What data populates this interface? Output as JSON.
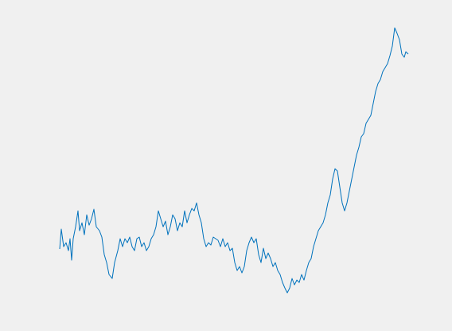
{
  "chart_data": {
    "type": "line",
    "color": "#0072bd",
    "x": [
      75,
      77,
      80,
      83,
      86,
      88,
      90,
      92,
      95,
      98,
      100,
      103,
      106,
      109,
      112,
      115,
      118,
      121,
      125,
      128,
      131,
      134,
      137,
      141,
      144,
      148,
      151,
      154,
      157,
      160,
      163,
      166,
      169,
      172,
      175,
      178,
      181,
      184,
      187,
      190,
      193,
      196,
      199,
      202,
      205,
      208,
      211,
      214,
      217,
      220,
      223,
      226,
      229,
      232,
      235,
      238,
      241,
      244,
      247,
      250,
      253,
      256,
      259,
      262,
      265,
      268,
      271,
      274,
      277,
      280,
      283,
      286,
      289,
      292,
      295,
      298,
      301,
      304,
      307,
      310,
      313,
      316,
      319,
      322,
      325,
      328,
      331,
      334,
      337,
      340,
      343,
      346,
      349,
      352,
      355,
      358,
      361,
      364,
      367,
      370,
      373,
      376,
      379,
      382,
      385,
      388,
      391,
      394,
      397,
      400,
      403,
      406,
      409,
      412,
      415,
      418,
      421,
      424,
      427,
      430,
      433,
      436,
      439,
      442,
      445,
      448,
      451,
      454,
      457,
      460,
      463,
      466,
      469,
      472,
      475,
      478,
      481,
      484,
      487,
      490,
      493,
      496,
      499,
      502,
      505,
      508,
      510,
      513
    ],
    "values": [
      103,
      128,
      106,
      111,
      101,
      116,
      89,
      116,
      131,
      151,
      126,
      136,
      121,
      146,
      133,
      141,
      153,
      131,
      126,
      118,
      96,
      86,
      71,
      66,
      86,
      101,
      116,
      106,
      116,
      111,
      118,
      106,
      101,
      116,
      118,
      106,
      111,
      101,
      106,
      116,
      121,
      131,
      151,
      141,
      131,
      138,
      121,
      131,
      146,
      141,
      126,
      136,
      131,
      151,
      136,
      146,
      154,
      151,
      161,
      146,
      136,
      116,
      106,
      111,
      108,
      118,
      116,
      114,
      106,
      116,
      106,
      111,
      101,
      104,
      86,
      76,
      81,
      73,
      81,
      101,
      111,
      118,
      111,
      116,
      96,
      86,
      104,
      91,
      98,
      91,
      81,
      86,
      76,
      71,
      61,
      54,
      48,
      54,
      66,
      58,
      64,
      61,
      71,
      64,
      76,
      86,
      91,
      106,
      116,
      126,
      131,
      136,
      146,
      161,
      171,
      191,
      204,
      201,
      181,
      161,
      151,
      161,
      176,
      191,
      206,
      221,
      231,
      244,
      248,
      261,
      266,
      271,
      286,
      301,
      311,
      316,
      326,
      331,
      336,
      346,
      358,
      381,
      374,
      366,
      348,
      344,
      351,
      348
    ],
    "xlim": [
      75,
      513
    ],
    "ylim": [
      0,
      416
    ]
  }
}
